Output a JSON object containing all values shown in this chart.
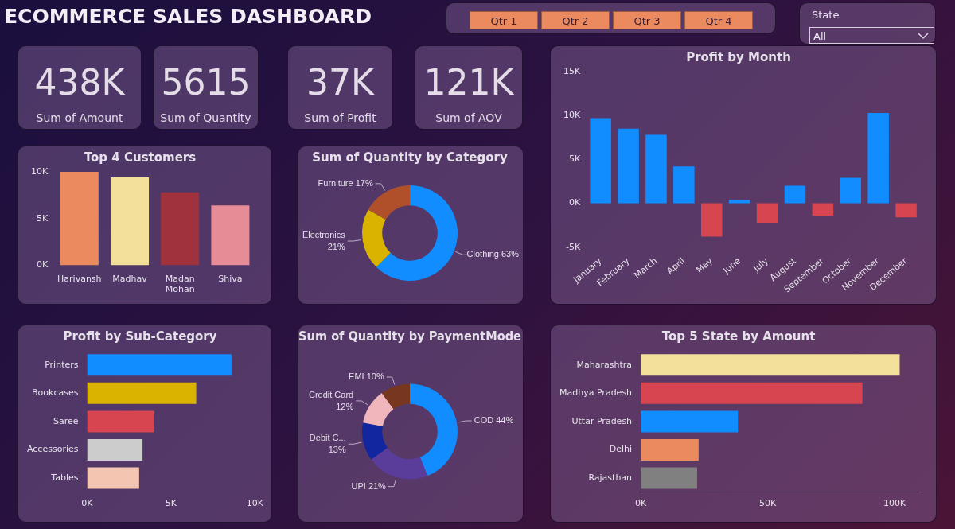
{
  "chart_data": [
    {
      "type": "other",
      "title": "ECOMMERCE SALES DASHBOARD",
      "categories": [
        "Qtr 1",
        "Qtr 2",
        "Qtr 3",
        "Qtr 4"
      ]
    },
    {
      "type": "other",
      "title": "State",
      "annotations": [
        "All"
      ]
    },
    {
      "type": "other",
      "categories": [
        "Sum of Amount",
        "Sum of Quantity",
        "Sum of Profit",
        "Sum of AOV"
      ],
      "value_labels": [
        "438K",
        "5615",
        "37K",
        "121K"
      ]
    },
    {
      "type": "bar",
      "title": "Top 4 Customers",
      "categories": [
        "Harivansh",
        "Madhav",
        "Madan Mohan",
        "Shiva"
      ],
      "values": [
        10000,
        9400,
        7800,
        6400
      ],
      "colors": [
        "#eb895f",
        "#f2e09b",
        "#a0323e",
        "#e68c96"
      ],
      "ylim": [
        0,
        10000
      ],
      "yticks": [
        {
          "value": 0,
          "label": "0K"
        },
        {
          "value": 5000,
          "label": "5K"
        },
        {
          "value": 10000,
          "label": "10K"
        }
      ]
    },
    {
      "type": "donut",
      "title": "Sum of Quantity by Category",
      "categories": [
        "Clothing",
        "Electronics",
        "Furniture"
      ],
      "values": [
        63,
        21,
        17
      ],
      "colors": [
        "#118dff",
        "#d9b300",
        "#b0502a"
      ],
      "value_labels": [
        "63%",
        "21%",
        "17%"
      ]
    },
    {
      "type": "bar",
      "title": "Profit by Month",
      "categories": [
        "January",
        "February",
        "March",
        "April",
        "May",
        "June",
        "July",
        "August",
        "September",
        "October",
        "November",
        "December"
      ],
      "values": [
        9700,
        8500,
        7800,
        4200,
        -3800,
        400,
        -2200,
        2000,
        -1400,
        2900,
        10300,
        -1600
      ],
      "colors": [
        "#118dff",
        "#118dff",
        "#118dff",
        "#118dff",
        "#d64550",
        "#118dff",
        "#d64550",
        "#118dff",
        "#d64550",
        "#118dff",
        "#118dff",
        "#d64550"
      ],
      "ylim": [
        -5000,
        15000
      ],
      "yticks": [
        {
          "value": -5000,
          "label": "-5K"
        },
        {
          "value": 0,
          "label": "0K"
        },
        {
          "value": 5000,
          "label": "5K"
        },
        {
          "value": 10000,
          "label": "10K"
        },
        {
          "value": 15000,
          "label": "15K"
        }
      ]
    },
    {
      "type": "bar",
      "orientation": "horizontal",
      "title": "Profit by Sub-Category",
      "categories": [
        "Printers",
        "Bookcases",
        "Saree",
        "Accessories",
        "Tables"
      ],
      "values": [
        8600,
        6500,
        4000,
        3300,
        3100
      ],
      "colors": [
        "#118dff",
        "#d9b300",
        "#d64550",
        "#cccccc",
        "#f4c5b0"
      ],
      "xlim": [
        0,
        10000
      ],
      "xticks": [
        {
          "value": 0,
          "label": "0K"
        },
        {
          "value": 5000,
          "label": "5K"
        },
        {
          "value": 10000,
          "label": "10K"
        }
      ]
    },
    {
      "type": "donut",
      "title": "Sum of Quantity by PaymentMode",
      "categories": [
        "COD",
        "UPI",
        "Debit C...",
        "Credit Card",
        "EMI"
      ],
      "values": [
        44,
        21,
        13,
        12,
        10
      ],
      "colors": [
        "#118dff",
        "#5a3c9b",
        "#1226a0",
        "#f0b6bc",
        "#77361e"
      ],
      "value_labels": [
        "44%",
        "21%",
        "13%",
        "12%",
        "10%"
      ]
    },
    {
      "type": "bar",
      "orientation": "horizontal",
      "title": "Top 5 State by Amount",
      "categories": [
        "Maharashtra",
        "Madhya Pradesh",
        "Uttar Pradesh",
        "Delhi",
        "Rajasthan"
      ],
      "values": [
        102000,
        87300,
        38300,
        22800,
        22200
      ],
      "colors": [
        "#f2e09b",
        "#d64550",
        "#118dff",
        "#eb895f",
        "#808080"
      ],
      "xlim": [
        0,
        110000
      ],
      "xticks": [
        {
          "value": 0,
          "label": "0K"
        },
        {
          "value": 50000,
          "label": "50K"
        },
        {
          "value": 100000,
          "label": "100K"
        }
      ]
    }
  ]
}
